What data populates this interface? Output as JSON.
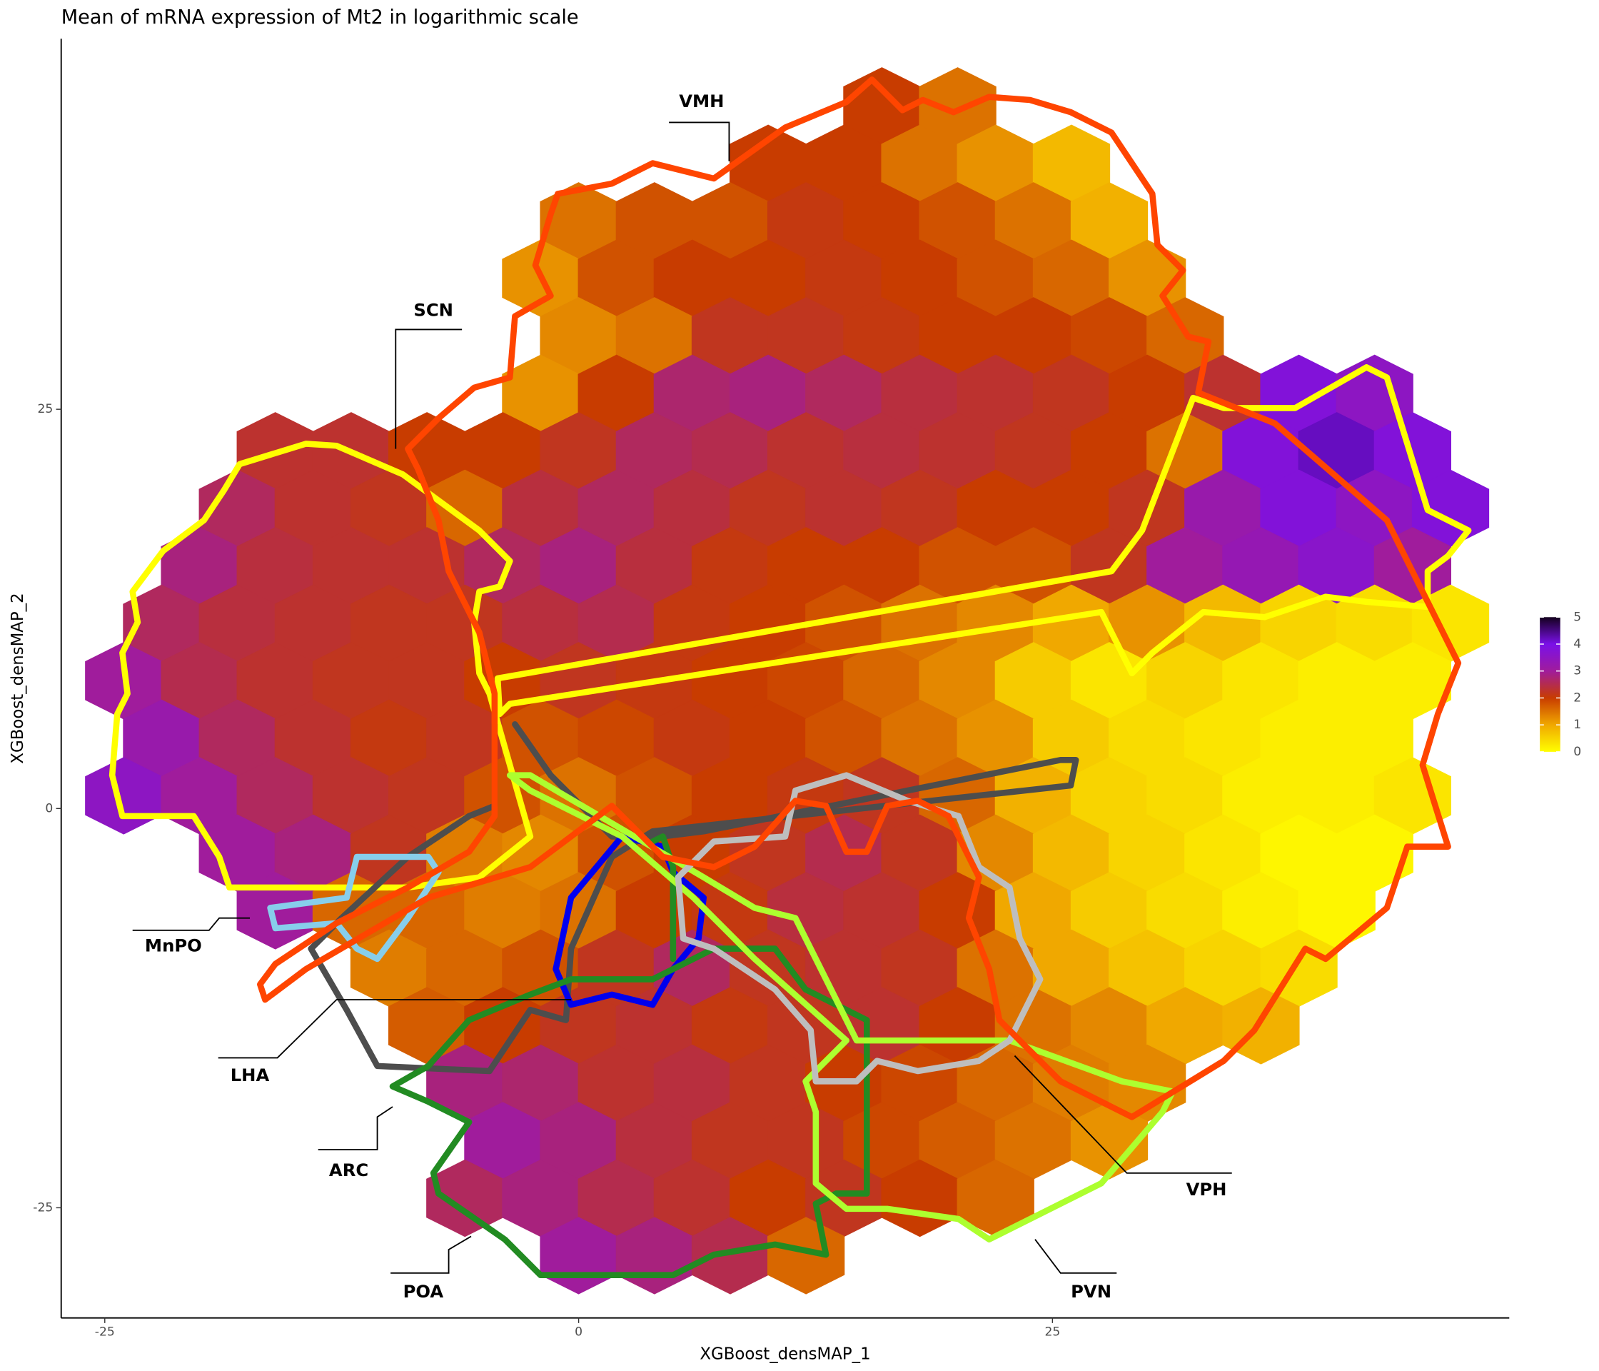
{
  "chart_data": {
    "type": "hexbin",
    "title": "Mean of mRNA expression of Mt2 in logarithmic scale",
    "x_label": "XGBoost_densMAP_1",
    "y_label": "XGBoost_densMAP_2",
    "xlim": [
      -27.3,
      49.1
    ],
    "ylim": [
      -31.9,
      48.2
    ],
    "xticks": [
      -25,
      0,
      25
    ],
    "yticks": [
      -25,
      0,
      25
    ],
    "grid": false,
    "colormap": [
      "#ffff00",
      "#f0a800",
      "#c83c00",
      "#a01c9c",
      "#7a10e8",
      "#14001e"
    ],
    "colorbar": {
      "lim": [
        0,
        5
      ],
      "ticks": [
        0,
        1,
        2,
        3,
        4,
        5
      ]
    },
    "annotations": [
      "VMH",
      "SCN",
      "MnPO",
      "LHA",
      "ARC",
      "POA",
      "VPH",
      "PVN"
    ],
    "hexbins": [
      {
        "y": 44,
        "x": [
          16,
          20
        ],
        "values": [
          2,
          1.5
        ]
      },
      {
        "y": 40.4,
        "x": [
          10,
          14,
          18,
          22,
          26
        ],
        "values": [
          2,
          2,
          1.5,
          1.2,
          0.8
        ]
      },
      {
        "y": 36.8,
        "x": [
          0,
          4,
          8,
          12,
          16,
          20,
          24,
          28
        ],
        "values": [
          1.5,
          1.8,
          1.8,
          2.1,
          2,
          1.8,
          1.5,
          0.9
        ]
      },
      {
        "y": 33.2,
        "x": [
          -2,
          2,
          6,
          10,
          14,
          18,
          22,
          26,
          30
        ],
        "values": [
          1.2,
          1.8,
          2,
          2,
          2.1,
          2,
          1.8,
          1.6,
          1.2
        ]
      },
      {
        "y": 29.6,
        "x": [
          0,
          4,
          8,
          12,
          16,
          20,
          24,
          28,
          32
        ],
        "values": [
          1.3,
          1.5,
          2.2,
          2.2,
          2.1,
          2,
          2,
          1.9,
          1.6
        ]
      },
      {
        "y": 26,
        "x": [
          -2,
          2,
          6,
          10,
          14,
          18,
          22,
          26,
          30,
          34,
          38,
          42
        ],
        "values": [
          1.2,
          2,
          2.7,
          2.8,
          2.6,
          2.4,
          2.3,
          2.2,
          2,
          2.3,
          3.8,
          3.5
        ]
      },
      {
        "y": 22.4,
        "x": [
          -16,
          -12,
          -8,
          -4,
          0,
          4,
          8,
          12,
          16,
          20,
          24,
          28,
          32,
          36,
          40,
          44
        ],
        "values": [
          2.3,
          2.3,
          2,
          2,
          2.2,
          2.6,
          2.5,
          2.3,
          2.4,
          2.3,
          2.2,
          2,
          1.5,
          3.8,
          4.2,
          3.8
        ]
      },
      {
        "y": 18.8,
        "x": [
          -18,
          -14,
          -10,
          -6,
          -2,
          2,
          6,
          10,
          14,
          18,
          22,
          26,
          30,
          34,
          38,
          42,
          46
        ],
        "values": [
          2.6,
          2.3,
          2.2,
          1.6,
          2.4,
          2.6,
          2.4,
          2.2,
          2.3,
          2.2,
          2,
          2,
          2.2,
          3.2,
          3.8,
          3.5,
          3.8
        ]
      },
      {
        "y": 15.2,
        "x": [
          -20,
          -16,
          -12,
          -8,
          -4,
          0,
          4,
          8,
          12,
          16,
          20,
          24,
          28,
          32,
          36,
          40,
          44
        ],
        "values": [
          2.8,
          2.4,
          2.3,
          2.3,
          2.6,
          2.8,
          2.4,
          2.1,
          2,
          2,
          1.8,
          1.8,
          2.2,
          3,
          3.3,
          3.6,
          3
        ]
      },
      {
        "y": 11.6,
        "x": [
          -22,
          -18,
          -14,
          -10,
          -6,
          -2,
          2,
          6,
          10,
          14,
          18,
          22,
          26,
          30,
          34,
          38,
          42,
          46
        ],
        "values": [
          2.6,
          2.4,
          2.3,
          2.2,
          2.2,
          2.4,
          2.5,
          2.1,
          2,
          1.8,
          1.5,
          1.3,
          1,
          1.2,
          0.8,
          0.5,
          0.4,
          0.3
        ]
      },
      {
        "y": 8,
        "x": [
          -24,
          -20,
          -16,
          -12,
          -8,
          -4,
          0,
          4,
          8,
          12,
          16,
          20,
          24,
          28,
          32,
          36,
          40,
          44
        ],
        "values": [
          3,
          2.5,
          2.3,
          2.2,
          2.2,
          2,
          2.2,
          2.1,
          2,
          1.9,
          1.6,
          1.3,
          0.6,
          0.3,
          0.5,
          0.3,
          0.2,
          0.2
        ]
      },
      {
        "y": 4.4,
        "x": [
          -22,
          -18,
          -14,
          -10,
          -6,
          -2,
          2,
          6,
          10,
          14,
          18,
          22,
          26,
          30,
          34,
          38,
          42
        ],
        "values": [
          3.2,
          2.6,
          2.3,
          2.1,
          2.2,
          1.8,
          1.9,
          2.1,
          2,
          1.8,
          1.5,
          1.2,
          0.6,
          0.4,
          0.3,
          0.2,
          0.2
        ]
      },
      {
        "y": 0.8,
        "x": [
          -24,
          -20,
          -16,
          -12,
          -8,
          -4,
          0,
          4,
          8,
          12,
          16,
          20,
          24,
          28,
          32,
          36,
          40,
          44
        ],
        "values": [
          3.5,
          3,
          2.6,
          2.3,
          2.2,
          1.8,
          1.5,
          1.8,
          2,
          2.1,
          2.2,
          1.6,
          0.9,
          0.5,
          0.4,
          0.2,
          0.2,
          0.3
        ]
      },
      {
        "y": -2.8,
        "x": [
          -18,
          -14,
          -10,
          -6,
          -2,
          2,
          6,
          10,
          14,
          18,
          22,
          26,
          30,
          34,
          38,
          42
        ],
        "values": [
          3,
          2.8,
          2.2,
          1.4,
          1.3,
          1.8,
          2,
          2.2,
          2.5,
          2.2,
          1.3,
          0.8,
          0.5,
          0.3,
          0.1,
          0.1
        ]
      },
      {
        "y": -6.4,
        "x": [
          -16,
          -12,
          -8,
          -4,
          0,
          4,
          8,
          12,
          16,
          20,
          24,
          28,
          32,
          36,
          40
        ],
        "values": [
          3,
          1.6,
          1.6,
          1.4,
          1.5,
          2,
          2.1,
          2.4,
          2.3,
          2,
          1,
          0.6,
          0.4,
          0.2,
          0.1
        ]
      },
      {
        "y": -10,
        "x": [
          -10,
          -6,
          -2,
          2,
          6,
          10,
          14,
          18,
          22,
          26,
          30,
          34,
          38
        ],
        "values": [
          1.4,
          1.6,
          1.8,
          2.2,
          2.6,
          2.2,
          2.3,
          2.2,
          1.5,
          1,
          0.7,
          0.5,
          0.4
        ]
      },
      {
        "y": -13.6,
        "x": [
          -8,
          -4,
          0,
          4,
          8,
          12,
          16,
          20,
          24,
          28,
          32,
          36
        ],
        "values": [
          1.7,
          2,
          2.2,
          2.3,
          2.1,
          2.2,
          2.3,
          2,
          1.5,
          1.3,
          1,
          0.9
        ]
      },
      {
        "y": -17.2,
        "x": [
          -6,
          -2,
          2,
          6,
          10,
          14,
          18,
          22,
          26,
          30
        ],
        "values": [
          2.8,
          2.7,
          2.3,
          2.4,
          2.2,
          2,
          1.9,
          1.6,
          1.4,
          1.3
        ]
      },
      {
        "y": -20.8,
        "x": [
          -4,
          0,
          4,
          8,
          12,
          16,
          20,
          24,
          28
        ],
        "values": [
          3,
          2.8,
          2.4,
          2.2,
          2.2,
          1.9,
          1.7,
          1.5,
          1.2
        ]
      },
      {
        "y": -24.4,
        "x": [
          -6,
          -2,
          2,
          6,
          10,
          14,
          18,
          22
        ],
        "values": [
          2.6,
          2.8,
          2.5,
          2.3,
          2,
          2.2,
          2,
          1.6
        ]
      },
      {
        "y": -28,
        "x": [
          0,
          4,
          8,
          12
        ],
        "values": [
          3,
          2.8,
          2.5,
          1.6
        ]
      }
    ]
  }
}
